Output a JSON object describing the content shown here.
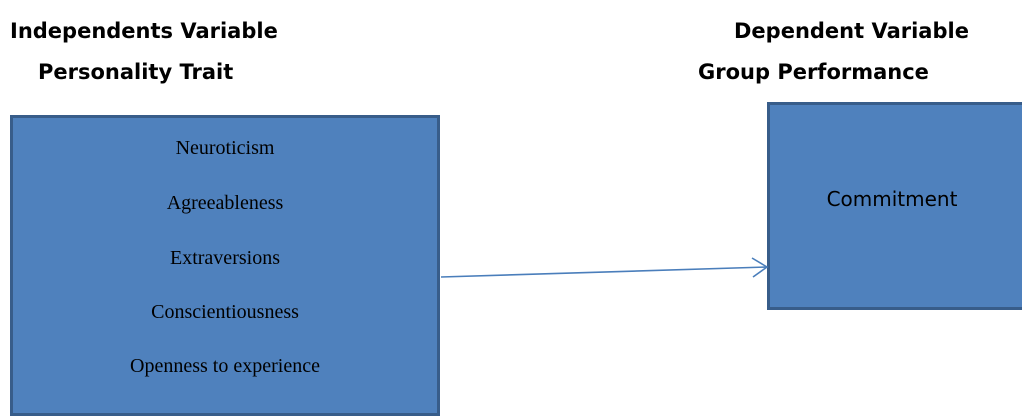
{
  "left_heading": {
    "title": "Independents Variable",
    "subtitle": "Personality Trait"
  },
  "right_heading": {
    "title": "Dependent Variable",
    "subtitle": "Group Performance"
  },
  "independent_box": {
    "items": [
      "Neuroticism",
      "Agreeableness",
      "Extraversions",
      "Conscientiousness",
      "Openness to experience"
    ]
  },
  "dependent_box": {
    "label": "Commitment"
  },
  "colors": {
    "box_fill": "#4f81bd",
    "box_border": "#385d8a",
    "arrow": "#4a7ebb"
  }
}
